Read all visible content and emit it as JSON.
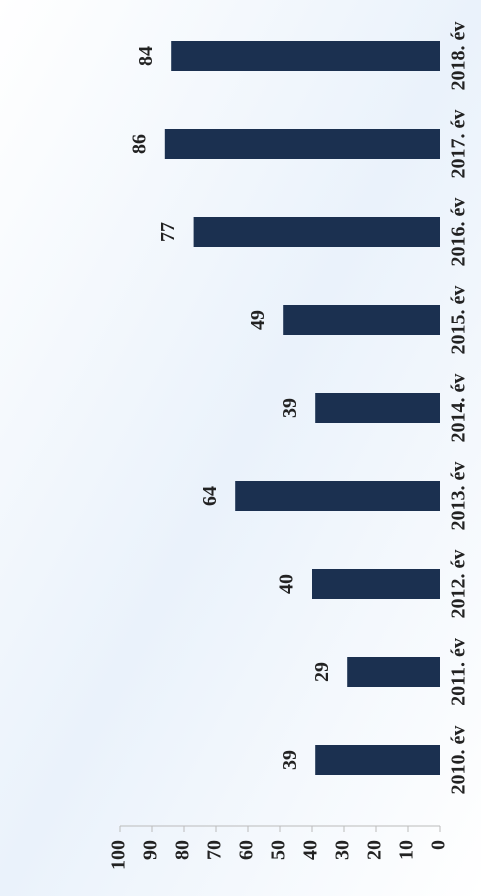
{
  "chart_data": {
    "type": "bar",
    "categories": [
      "2010. év",
      "2011. év",
      "2012. év",
      "2013. év",
      "2014. év",
      "2015. év",
      "2016. év",
      "2017. év",
      "2018. év"
    ],
    "values": [
      39,
      29,
      40,
      64,
      39,
      49,
      77,
      86,
      84
    ],
    "color": "#1b3050",
    "ylim": [
      0,
      100
    ],
    "yticks": [
      0,
      10,
      20,
      30,
      40,
      50,
      60,
      70,
      80,
      90,
      100
    ],
    "grid": false
  }
}
